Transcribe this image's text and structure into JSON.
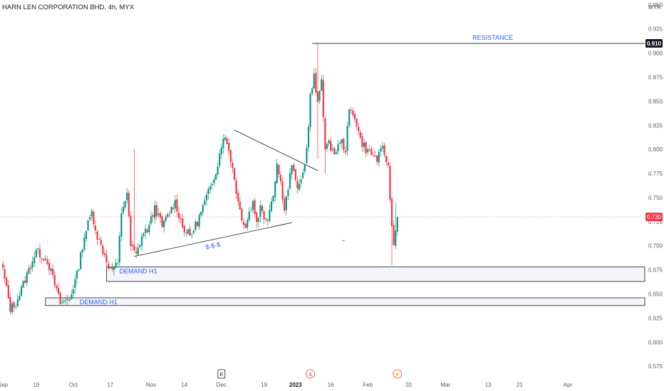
{
  "chart_data": {
    "type": "candlestick",
    "title": "HARN LEN CORPORATION BHD, 4h, MYX",
    "currency": "MYR",
    "ylim": [
      0.57,
      0.955
    ],
    "y_ticks": [
      0.575,
      0.6,
      0.625,
      0.65,
      0.675,
      0.7,
      0.725,
      0.75,
      0.775,
      0.8,
      0.825,
      0.85,
      0.875,
      0.9,
      0.925,
      0.95
    ],
    "y_tick_labels": [
      "0.575",
      "0.600",
      "0.625",
      "0.650",
      "0.675",
      "0.700",
      "0.725",
      "0.750",
      "0.775",
      "0.800",
      "0.825",
      "0.850",
      "0.875",
      "0.900",
      "0.925",
      "0.950"
    ],
    "x_ticks": [
      {
        "label": "Sep",
        "x": 0
      },
      {
        "label": "19",
        "x": 18
      },
      {
        "label": "Oct",
        "x": 38
      },
      {
        "label": "17",
        "x": 58
      },
      {
        "label": "Nov",
        "x": 80
      },
      {
        "label": "14",
        "x": 98
      },
      {
        "label": "Dec",
        "x": 118
      },
      {
        "label": "19",
        "x": 141
      },
      {
        "label": "2023",
        "x": 158,
        "bold": true
      },
      {
        "label": "16",
        "x": 177
      },
      {
        "label": "Feb",
        "x": 197
      },
      {
        "label": "20",
        "x": 219
      },
      {
        "label": "Mar",
        "x": 239
      },
      {
        "label": "13",
        "x": 262
      },
      {
        "label": "21",
        "x": 279
      },
      {
        "label": "Apr",
        "x": 305
      }
    ],
    "x_range": [
      0,
      340
    ],
    "price_label": "0.730",
    "price_line": 0.73,
    "resistance_price": "0.910",
    "anchors": [
      [
        0,
        0.675
      ],
      [
        4,
        0.635
      ],
      [
        7,
        0.64
      ],
      [
        14,
        0.675
      ],
      [
        18,
        0.695
      ],
      [
        24,
        0.685
      ],
      [
        28,
        0.66
      ],
      [
        31,
        0.64
      ],
      [
        36,
        0.645
      ],
      [
        40,
        0.67
      ],
      [
        44,
        0.71
      ],
      [
        48,
        0.735
      ],
      [
        51,
        0.71
      ],
      [
        55,
        0.69
      ],
      [
        58,
        0.675
      ],
      [
        62,
        0.68
      ],
      [
        64,
        0.735
      ],
      [
        67,
        0.755
      ],
      [
        69,
        0.7
      ],
      [
        72,
        0.69
      ],
      [
        75,
        0.71
      ],
      [
        79,
        0.72
      ],
      [
        82,
        0.74
      ],
      [
        86,
        0.72
      ],
      [
        90,
        0.735
      ],
      [
        93,
        0.745
      ],
      [
        97,
        0.72
      ],
      [
        101,
        0.71
      ],
      [
        105,
        0.725
      ],
      [
        108,
        0.74
      ],
      [
        112,
        0.76
      ],
      [
        116,
        0.785
      ],
      [
        119,
        0.815
      ],
      [
        122,
        0.8
      ],
      [
        125,
        0.77
      ],
      [
        127,
        0.745
      ],
      [
        129,
        0.73
      ],
      [
        131,
        0.72
      ],
      [
        133,
        0.735
      ],
      [
        135,
        0.745
      ],
      [
        137,
        0.725
      ],
      [
        139,
        0.74
      ],
      [
        141,
        0.73
      ],
      [
        143,
        0.73
      ],
      [
        146,
        0.755
      ],
      [
        148,
        0.785
      ],
      [
        150,
        0.765
      ],
      [
        152,
        0.74
      ],
      [
        154,
        0.76
      ],
      [
        156,
        0.785
      ],
      [
        158,
        0.765
      ],
      [
        160,
        0.76
      ],
      [
        162,
        0.775
      ],
      [
        164,
        0.8
      ],
      [
        166,
        0.855
      ],
      [
        168,
        0.875
      ],
      [
        170,
        0.845
      ],
      [
        172,
        0.875
      ],
      [
        174,
        0.8
      ],
      [
        176,
        0.805
      ],
      [
        178,
        0.8
      ],
      [
        180,
        0.795
      ],
      [
        182,
        0.81
      ],
      [
        185,
        0.8
      ],
      [
        187,
        0.84
      ],
      [
        190,
        0.835
      ],
      [
        193,
        0.81
      ],
      [
        196,
        0.8
      ],
      [
        199,
        0.795
      ],
      [
        202,
        0.79
      ],
      [
        205,
        0.8
      ],
      [
        207,
        0.79
      ],
      [
        208,
        0.78
      ],
      [
        210,
        0.72
      ],
      [
        211,
        0.7
      ],
      [
        212,
        0.72
      ],
      [
        213,
        0.73
      ]
    ],
    "anomalies": [
      {
        "x": 71,
        "high": 0.8
      },
      {
        "x": 170,
        "high": 0.91,
        "low": 0.79
      },
      {
        "x": 174,
        "low": 0.775
      },
      {
        "x": 210,
        "low": 0.68
      },
      {
        "x": 212,
        "high": 0.745
      }
    ],
    "resistance": {
      "label": "RESISTANCE",
      "price": 0.91,
      "x_start": 167
    },
    "demand_zones": [
      {
        "label": "DEMAND H1",
        "low": 0.663,
        "high": 0.678,
        "x_start": 56
      },
      {
        "label": "DEMAND H1",
        "low": 0.638,
        "high": 0.646,
        "x_start": 23
      }
    ],
    "trendlines": [
      {
        "points": [
          [
            71,
            0.689
          ],
          [
            156,
            0.724
          ]
        ],
        "label": "$-$-$"
      },
      {
        "points": [
          [
            125,
            0.82
          ],
          [
            170,
            0.778
          ]
        ]
      }
    ],
    "event_markers": [
      {
        "type": "earnings",
        "glyph": "E",
        "x": 118
      },
      {
        "type": "dividend",
        "glyph": "$",
        "x": 166
      },
      {
        "type": "split",
        "glyph": "⚡",
        "x": 213
      }
    ]
  }
}
